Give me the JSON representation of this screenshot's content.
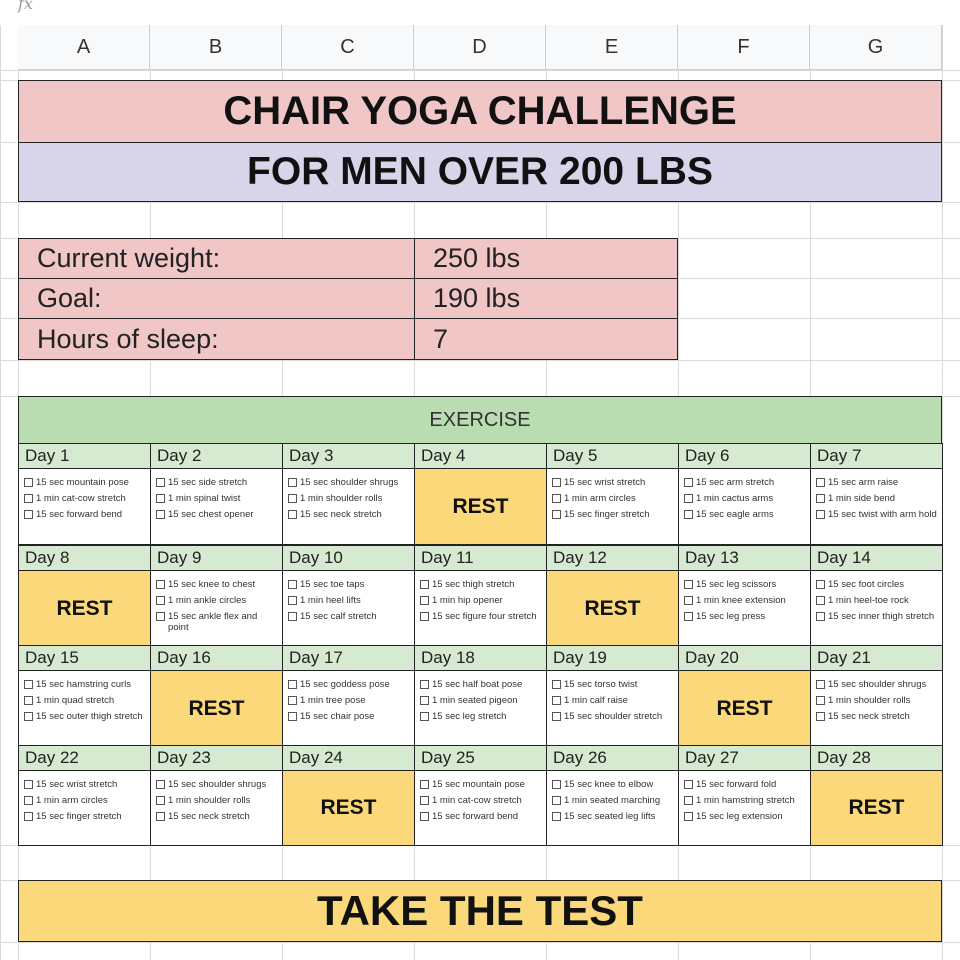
{
  "formula_bar": {
    "label": "fx"
  },
  "columns": [
    "A",
    "B",
    "C",
    "D",
    "E",
    "F",
    "G"
  ],
  "title": "CHAIR YOGA CHALLENGE",
  "subtitle": "FOR MEN OVER 200 LBS",
  "stats": [
    {
      "label": "Current weight:",
      "value": "250 lbs"
    },
    {
      "label": "Goal:",
      "value": "190 lbs"
    },
    {
      "label": "Hours of sleep:",
      "value": "7"
    }
  ],
  "exercise_header": "EXERCISE",
  "rest_label": "REST",
  "days": [
    {
      "label": "Day 1",
      "items": [
        "15 sec mountain pose",
        "1 min cat-cow stretch",
        "15 sec forward bend"
      ]
    },
    {
      "label": "Day 2",
      "items": [
        "15 sec side stretch",
        "1 min spinal twist",
        "15 sec chest opener"
      ]
    },
    {
      "label": "Day 3",
      "items": [
        "15 sec shoulder shrugs",
        "1 min shoulder rolls",
        "15 sec neck stretch"
      ]
    },
    {
      "label": "Day 4",
      "rest": true
    },
    {
      "label": "Day 5",
      "items": [
        "15 sec wrist stretch",
        "1 min arm circles",
        "15 sec finger stretch"
      ]
    },
    {
      "label": "Day 6",
      "items": [
        "15 sec arm stretch",
        "1 min cactus arms",
        "15 sec eagle arms"
      ]
    },
    {
      "label": "Day 7",
      "items": [
        "15 sec arm raise",
        "1 min side bend",
        "15 sec twist with arm hold"
      ]
    },
    {
      "label": "Day 8",
      "rest": true
    },
    {
      "label": "Day 9",
      "items": [
        "15 sec knee to chest",
        "1 min ankle circles",
        "15 sec ankle flex and point"
      ]
    },
    {
      "label": "Day 10",
      "items": [
        "15 sec toe taps",
        "1 min heel lifts",
        "15 sec calf stretch"
      ]
    },
    {
      "label": "Day 11",
      "items": [
        "15 sec thigh stretch",
        "1 min hip opener",
        "15 sec figure four stretch"
      ]
    },
    {
      "label": "Day 12",
      "rest": true
    },
    {
      "label": "Day 13",
      "items": [
        "15 sec leg scissors",
        "1 min knee extension",
        "15 sec leg press"
      ]
    },
    {
      "label": "Day 14",
      "items": [
        "15 sec foot circles",
        "1 min heel-toe rock",
        "15 sec inner thigh stretch"
      ]
    },
    {
      "label": "Day 15",
      "items": [
        "15 sec hamstring curls",
        "1 min quad stretch",
        "15 sec outer thigh stretch"
      ]
    },
    {
      "label": "Day 16",
      "rest": true
    },
    {
      "label": "Day 17",
      "items": [
        "15 sec goddess pose",
        "1 min tree pose",
        "15 sec chair pose"
      ]
    },
    {
      "label": "Day 18",
      "items": [
        "15 sec half boat pose",
        "1 min seated pigeon",
        "15 sec leg stretch"
      ]
    },
    {
      "label": "Day 19",
      "items": [
        "15 sec torso twist",
        "1 min calf raise",
        "15 sec shoulder stretch"
      ]
    },
    {
      "label": "Day 20",
      "rest": true
    },
    {
      "label": "Day 21",
      "items": [
        "15 sec shoulder shrugs",
        "1 min shoulder rolls",
        "15 sec neck stretch"
      ]
    },
    {
      "label": "Day 22",
      "items": [
        "15 sec wrist stretch",
        "1 min arm circles",
        "15 sec finger stretch"
      ]
    },
    {
      "label": "Day 23",
      "items": [
        "15 sec shoulder shrugs",
        "1 min shoulder rolls",
        "15 sec neck stretch"
      ]
    },
    {
      "label": "Day 24",
      "rest": true
    },
    {
      "label": "Day 25",
      "items": [
        "15 sec mountain pose",
        "1 min cat-cow stretch",
        "15 sec forward bend"
      ]
    },
    {
      "label": "Day 26",
      "items": [
        "15 sec knee to elbow",
        "1 min seated marching",
        "15 sec seated leg lifts"
      ]
    },
    {
      "label": "Day 27",
      "items": [
        "15 sec forward fold",
        "1 min hamstring stretch",
        "15 sec leg extension"
      ]
    },
    {
      "label": "Day 28",
      "rest": true
    }
  ],
  "test_button": "TAKE THE TEST",
  "colors": {
    "title_bg": "#f0c6c6",
    "subtitle_bg": "#d8d5ea",
    "exercise_bg": "#b9dcb0",
    "day_bg": "#d5ead0",
    "rest_bg": "#fbd97a"
  }
}
